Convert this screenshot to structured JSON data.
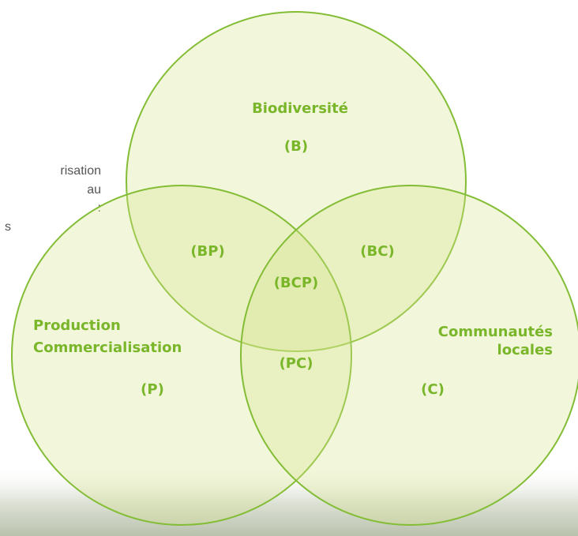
{
  "sidebar_text": [
    "risation",
    "au",
    ":",
    "s"
  ],
  "circles": [
    {
      "label_lines": [
        "Biodiversité"
      ],
      "code": "(B)"
    },
    {
      "label_lines": [
        "Production",
        "Commercialisation"
      ],
      "code": "(P)"
    },
    {
      "label_lines": [
        "Communautés",
        "locales"
      ],
      "code": "(C)"
    }
  ],
  "intersections": [
    "(BP)",
    "(BC)",
    "(BCP)",
    "(PC)"
  ]
}
